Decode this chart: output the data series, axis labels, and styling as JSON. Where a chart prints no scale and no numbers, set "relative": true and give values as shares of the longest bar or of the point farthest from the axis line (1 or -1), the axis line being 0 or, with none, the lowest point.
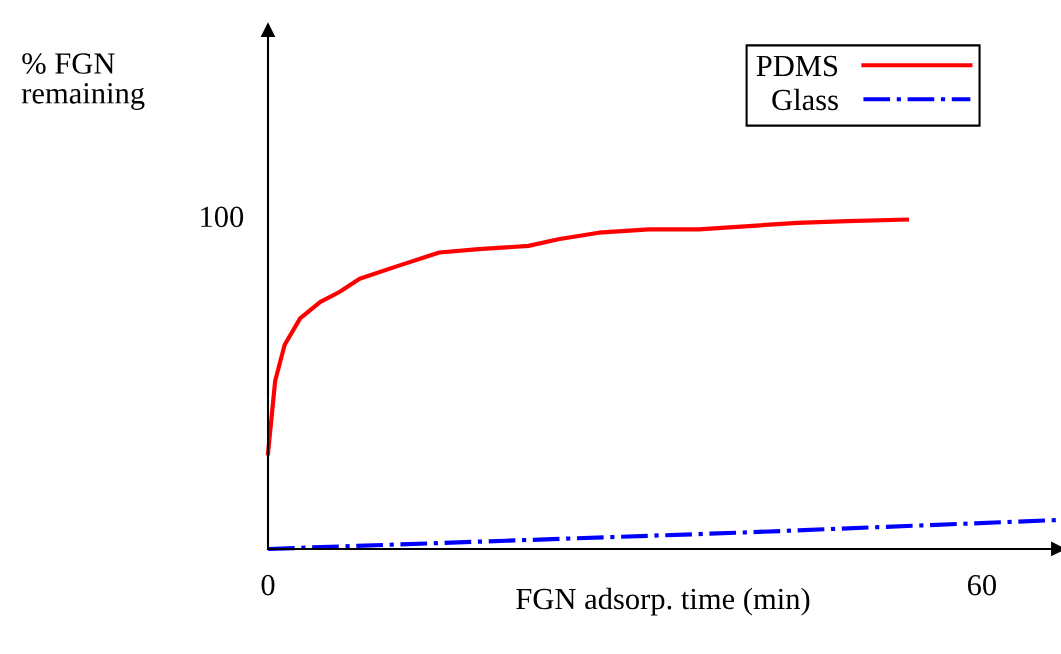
{
  "chart_data": {
    "type": "line",
    "xlabel": "FGN adsorp. time (min)",
    "relative": true,
    "annotations": [
      "% FGN\nremaining",
      "100"
    ],
    "xlim": [
      0,
      66.4
    ],
    "xticks": [
      0,
      60
    ],
    "grid": false,
    "legend": "top right",
    "marker": "none",
    "series": [
      {
        "name": "PDMS",
        "color": "#ff0000",
        "line_style": "solid",
        "x": [
          0,
          0.6,
          1.4,
          2.7,
          4.4,
          6.0,
          7.7,
          11.0,
          14.4,
          17.7,
          21.9,
          24.4,
          27.8,
          32.0,
          36.2,
          44.5,
          48.7,
          53.7
        ],
        "values": [
          0.29,
          0.51,
          0.62,
          0.7,
          0.75,
          0.78,
          0.82,
          0.86,
          0.9,
          0.91,
          0.92,
          0.94,
          0.96,
          0.97,
          0.97,
          0.99,
          0.995,
          1
        ]
      },
      {
        "name": "Glass",
        "color": "#0000ff",
        "line_style": "dashdot",
        "x": [
          0,
          20,
          40,
          66.4
        ],
        "values": [
          0,
          0.025,
          0.05,
          0.088
        ]
      }
    ]
  }
}
